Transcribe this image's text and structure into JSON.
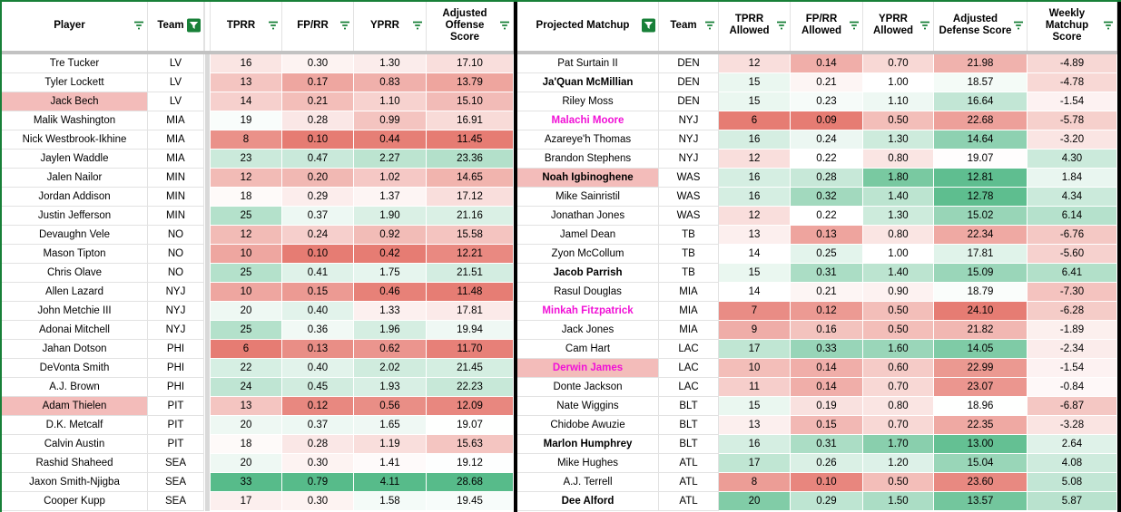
{
  "colors": {
    "accent_green": "#188038",
    "scale_red": "#e67c73",
    "scale_green": "#57bb8a",
    "highlight_pink": "#f3bcba",
    "magenta": "#f111d6",
    "divider_black": "#000000",
    "gridline": "#e2e2e2",
    "frozen_divider": "#c2c2c2",
    "spacer_gray": "#d9d9d9"
  },
  "left_table": {
    "headers": [
      {
        "label": "Player",
        "filter": "lines"
      },
      {
        "label": "Team",
        "filter": "active"
      },
      {
        "spacer": true
      },
      {
        "label": "TPRR",
        "filter": "lines"
      },
      {
        "label": "FP/RR",
        "filter": "lines"
      },
      {
        "label": "YPRR",
        "filter": "lines"
      },
      {
        "label": "Adjusted Offense Score",
        "filter": "lines"
      }
    ],
    "scales": {
      "tprr": {
        "min": 6,
        "mid": 18.5,
        "max": 33
      },
      "fprr": {
        "min": 0.1,
        "mid": 0.32,
        "max": 0.79
      },
      "yprr": {
        "min": 0.42,
        "mid": 1.45,
        "max": 3.5
      },
      "adj": {
        "min": 11.45,
        "mid": 19.0,
        "max": 28.68
      }
    },
    "rows": [
      {
        "player": "Tre Tucker",
        "team": "LV",
        "tprr": "16",
        "fprr": "0.30",
        "yprr": "1.30",
        "adj": "17.10"
      },
      {
        "player": "Tyler Lockett",
        "team": "LV",
        "tprr": "13",
        "fprr": "0.17",
        "yprr": "0.83",
        "adj": "13.79"
      },
      {
        "player": "Jack Bech",
        "team": "LV",
        "tprr": "14",
        "fprr": "0.21",
        "yprr": "1.10",
        "adj": "15.10",
        "highlight": true
      },
      {
        "player": "Malik Washington",
        "team": "MIA",
        "tprr": "19",
        "fprr": "0.28",
        "yprr": "0.99",
        "adj": "16.91"
      },
      {
        "player": "Nick Westbrook-Ikhine",
        "team": "MIA",
        "tprr": "8",
        "fprr": "0.10",
        "yprr": "0.44",
        "adj": "11.45"
      },
      {
        "player": "Jaylen Waddle",
        "team": "MIA",
        "tprr": "23",
        "fprr": "0.47",
        "yprr": "2.27",
        "adj": "23.36"
      },
      {
        "player": "Jalen Nailor",
        "team": "MIN",
        "tprr": "12",
        "fprr": "0.20",
        "yprr": "1.02",
        "adj": "14.65"
      },
      {
        "player": "Jordan Addison",
        "team": "MIN",
        "tprr": "18",
        "fprr": "0.29",
        "yprr": "1.37",
        "adj": "17.12"
      },
      {
        "player": "Justin Jefferson",
        "team": "MIN",
        "tprr": "25",
        "fprr": "0.37",
        "yprr": "1.90",
        "adj": "21.16"
      },
      {
        "player": "Devaughn Vele",
        "team": "NO",
        "tprr": "12",
        "fprr": "0.24",
        "yprr": "0.92",
        "adj": "15.58"
      },
      {
        "player": "Mason Tipton",
        "team": "NO",
        "tprr": "10",
        "fprr": "0.10",
        "yprr": "0.42",
        "adj": "12.21"
      },
      {
        "player": "Chris Olave",
        "team": "NO",
        "tprr": "25",
        "fprr": "0.41",
        "yprr": "1.75",
        "adj": "21.51"
      },
      {
        "player": "Allen Lazard",
        "team": "NYJ",
        "tprr": "10",
        "fprr": "0.15",
        "yprr": "0.46",
        "adj": "11.48"
      },
      {
        "player": "John Metchie III",
        "team": "NYJ",
        "tprr": "20",
        "fprr": "0.40",
        "yprr": "1.33",
        "adj": "17.81"
      },
      {
        "player": "Adonai Mitchell",
        "team": "NYJ",
        "tprr": "25",
        "fprr": "0.36",
        "yprr": "1.96",
        "adj": "19.94"
      },
      {
        "player": "Jahan Dotson",
        "team": "PHI",
        "tprr": "6",
        "fprr": "0.13",
        "yprr": "0.62",
        "adj": "11.70"
      },
      {
        "player": "DeVonta Smith",
        "team": "PHI",
        "tprr": "22",
        "fprr": "0.40",
        "yprr": "2.02",
        "adj": "21.45"
      },
      {
        "player": "A.J. Brown",
        "team": "PHI",
        "tprr": "24",
        "fprr": "0.45",
        "yprr": "1.93",
        "adj": "22.23"
      },
      {
        "player": "Adam Thielen",
        "team": "PIT",
        "tprr": "13",
        "fprr": "0.12",
        "yprr": "0.56",
        "adj": "12.09",
        "highlight": true
      },
      {
        "player": "D.K. Metcalf",
        "team": "PIT",
        "tprr": "20",
        "fprr": "0.37",
        "yprr": "1.65",
        "adj": "19.07"
      },
      {
        "player": "Calvin Austin",
        "team": "PIT",
        "tprr": "18",
        "fprr": "0.28",
        "yprr": "1.19",
        "adj": "15.63"
      },
      {
        "player": "Rashid Shaheed",
        "team": "SEA",
        "tprr": "20",
        "fprr": "0.30",
        "yprr": "1.41",
        "adj": "19.12"
      },
      {
        "player": "Jaxon Smith-Njigba",
        "team": "SEA",
        "tprr": "33",
        "fprr": "0.79",
        "yprr": "4.11",
        "adj": "28.68"
      },
      {
        "player": "Cooper Kupp",
        "team": "SEA",
        "tprr": "17",
        "fprr": "0.30",
        "yprr": "1.58",
        "adj": "19.45"
      }
    ]
  },
  "right_table": {
    "headers": [
      {
        "label": "Projected Matchup",
        "filter": "active"
      },
      {
        "label": "Team",
        "filter": "lines"
      },
      {
        "label": "TPRR Allowed",
        "filter": "lines"
      },
      {
        "label": "FP/RR Allowed",
        "filter": "lines"
      },
      {
        "label": "YPRR Allowed",
        "filter": "lines"
      },
      {
        "label": "Adjusted Defense Score",
        "filter": "lines"
      },
      {
        "label": "Weekly Matchup Score",
        "filter": "lines"
      }
    ],
    "scales": {
      "tprr_a": {
        "min": 6,
        "mid": 14,
        "max": 22
      },
      "fprr_a": {
        "min": 0.09,
        "mid": 0.22,
        "max": 0.4
      },
      "yprr_a": {
        "min": 0.0,
        "mid": 1.0,
        "max": 2.0
      },
      "adj_def": {
        "min": 12.5,
        "mid": 19.0,
        "max": 24.1,
        "reversed": true
      },
      "weekly": {
        "min": -16,
        "mid": 0,
        "max": 14
      }
    },
    "rows": [
      {
        "matchup": "Pat Surtain II",
        "team": "DEN",
        "tprr_a": "12",
        "fprr_a": "0.14",
        "yprr_a": "0.70",
        "adj_def": "21.98",
        "weekly": "-4.89"
      },
      {
        "matchup": "Ja'Quan McMillian",
        "team": "DEN",
        "tprr_a": "15",
        "fprr_a": "0.21",
        "yprr_a": "1.00",
        "adj_def": "18.57",
        "weekly": "-4.78",
        "bold": true
      },
      {
        "matchup": "Riley Moss",
        "team": "DEN",
        "tprr_a": "15",
        "fprr_a": "0.23",
        "yprr_a": "1.10",
        "adj_def": "16.64",
        "weekly": "-1.54"
      },
      {
        "matchup": "Malachi Moore",
        "team": "NYJ",
        "tprr_a": "6",
        "fprr_a": "0.09",
        "yprr_a": "0.50",
        "adj_def": "22.68",
        "weekly": "-5.78",
        "magenta": true
      },
      {
        "matchup": "Azareye'h Thomas",
        "team": "NYJ",
        "tprr_a": "16",
        "fprr_a": "0.24",
        "yprr_a": "1.30",
        "adj_def": "14.64",
        "weekly": "-3.20"
      },
      {
        "matchup": "Brandon Stephens",
        "team": "NYJ",
        "tprr_a": "12",
        "fprr_a": "0.22",
        "yprr_a": "0.80",
        "adj_def": "19.07",
        "weekly": "4.30"
      },
      {
        "matchup": "Noah Igbinoghene",
        "team": "WAS",
        "tprr_a": "16",
        "fprr_a": "0.28",
        "yprr_a": "1.80",
        "adj_def": "12.81",
        "weekly": "1.84",
        "bold": true,
        "highlight": true
      },
      {
        "matchup": "Mike Sainristil",
        "team": "WAS",
        "tprr_a": "16",
        "fprr_a": "0.32",
        "yprr_a": "1.40",
        "adj_def": "12.78",
        "weekly": "4.34"
      },
      {
        "matchup": "Jonathan Jones",
        "team": "WAS",
        "tprr_a": "12",
        "fprr_a": "0.22",
        "yprr_a": "1.30",
        "adj_def": "15.02",
        "weekly": "6.14"
      },
      {
        "matchup": "Jamel Dean",
        "team": "TB",
        "tprr_a": "13",
        "fprr_a": "0.13",
        "yprr_a": "0.80",
        "adj_def": "22.34",
        "weekly": "-6.76"
      },
      {
        "matchup": "Zyon McCollum",
        "team": "TB",
        "tprr_a": "14",
        "fprr_a": "0.25",
        "yprr_a": "1.00",
        "adj_def": "17.81",
        "weekly": "-5.60"
      },
      {
        "matchup": "Jacob Parrish",
        "team": "TB",
        "tprr_a": "15",
        "fprr_a": "0.31",
        "yprr_a": "1.40",
        "adj_def": "15.09",
        "weekly": "6.41",
        "bold": true
      },
      {
        "matchup": "Rasul Douglas",
        "team": "MIA",
        "tprr_a": "14",
        "fprr_a": "0.21",
        "yprr_a": "0.90",
        "adj_def": "18.79",
        "weekly": "-7.30"
      },
      {
        "matchup": "Minkah Fitzpatrick",
        "team": "MIA",
        "tprr_a": "7",
        "fprr_a": "0.12",
        "yprr_a": "0.50",
        "adj_def": "24.10",
        "weekly": "-6.28",
        "magenta": true
      },
      {
        "matchup": "Jack Jones",
        "team": "MIA",
        "tprr_a": "9",
        "fprr_a": "0.16",
        "yprr_a": "0.50",
        "adj_def": "21.82",
        "weekly": "-1.89"
      },
      {
        "matchup": "Cam Hart",
        "team": "LAC",
        "tprr_a": "17",
        "fprr_a": "0.33",
        "yprr_a": "1.60",
        "adj_def": "14.05",
        "weekly": "-2.34"
      },
      {
        "matchup": "Derwin James",
        "team": "LAC",
        "tprr_a": "10",
        "fprr_a": "0.14",
        "yprr_a": "0.60",
        "adj_def": "22.99",
        "weekly": "-1.54",
        "magenta": true,
        "highlight": true
      },
      {
        "matchup": "Donte Jackson",
        "team": "LAC",
        "tprr_a": "11",
        "fprr_a": "0.14",
        "yprr_a": "0.70",
        "adj_def": "23.07",
        "weekly": "-0.84"
      },
      {
        "matchup": "Nate Wiggins",
        "team": "BLT",
        "tprr_a": "15",
        "fprr_a": "0.19",
        "yprr_a": "0.80",
        "adj_def": "18.96",
        "weekly": "-6.87"
      },
      {
        "matchup": "Chidobe Awuzie",
        "team": "BLT",
        "tprr_a": "13",
        "fprr_a": "0.15",
        "yprr_a": "0.70",
        "adj_def": "22.35",
        "weekly": "-3.28"
      },
      {
        "matchup": "Marlon Humphrey",
        "team": "BLT",
        "tprr_a": "16",
        "fprr_a": "0.31",
        "yprr_a": "1.70",
        "adj_def": "13.00",
        "weekly": "2.64",
        "bold": true
      },
      {
        "matchup": "Mike Hughes",
        "team": "ATL",
        "tprr_a": "17",
        "fprr_a": "0.26",
        "yprr_a": "1.20",
        "adj_def": "15.04",
        "weekly": "4.08"
      },
      {
        "matchup": "A.J. Terrell",
        "team": "ATL",
        "tprr_a": "8",
        "fprr_a": "0.10",
        "yprr_a": "0.50",
        "adj_def": "23.60",
        "weekly": "5.08"
      },
      {
        "matchup": "Dee Alford",
        "team": "ATL",
        "tprr_a": "20",
        "fprr_a": "0.29",
        "yprr_a": "1.50",
        "adj_def": "13.57",
        "weekly": "5.87",
        "bold": true
      }
    ]
  }
}
